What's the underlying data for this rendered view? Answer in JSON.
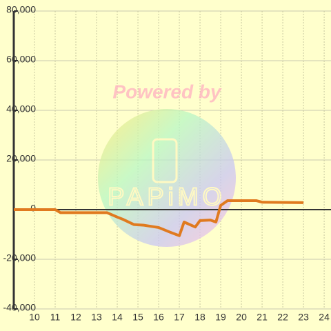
{
  "chart_data": {
    "type": "line",
    "x": [
      9,
      11,
      11.25,
      13.5,
      14,
      14.3,
      14.8,
      15.3,
      16,
      16.5,
      17,
      17.23,
      17.77,
      18,
      18.5,
      18.77,
      19,
      19.33,
      20.73,
      21,
      23
    ],
    "series": [
      {
        "name": null,
        "color": "#e07a1f",
        "values": [
          0,
          0,
          -1200,
          -1200,
          -3000,
          -4000,
          -6000,
          -6300,
          -7200,
          -8900,
          -10500,
          -5000,
          -7000,
          -4400,
          -4200,
          -5000,
          1700,
          3600,
          3600,
          3000,
          2800
        ]
      }
    ],
    "xlim": [
      9,
      24.33
    ],
    "xticks": [
      10,
      11,
      12,
      13,
      14,
      15,
      16,
      17,
      18,
      19,
      20,
      21,
      22,
      23,
      24
    ],
    "ylim": [
      -40000,
      80000
    ],
    "yticks": [
      {
        "value": -40000,
        "label": "-40,000"
      },
      {
        "value": -20000,
        "label": "-20,000"
      },
      0,
      {
        "value": 20000,
        "label": "20,000"
      },
      {
        "value": 40000,
        "label": "40,000"
      },
      {
        "value": 60000,
        "label": "60,000"
      },
      {
        "value": 80000,
        "label": "80,000"
      }
    ],
    "grid": true,
    "watermark": {
      "text": "Powered by",
      "brand": "PAPiMO"
    }
  }
}
